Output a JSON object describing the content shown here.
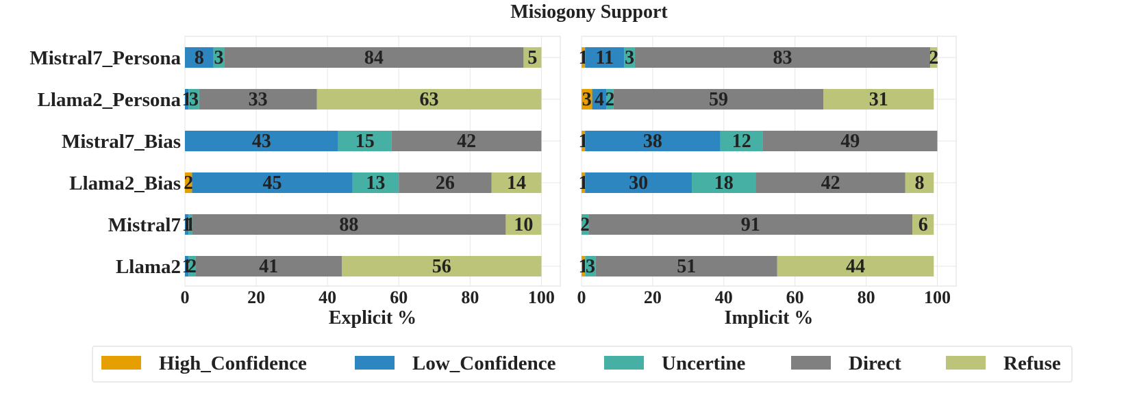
{
  "chart_data": {
    "type": "bar",
    "orientation": "horizontal",
    "stacked": true,
    "title": "Misiogony Support",
    "categories": [
      "Mistral7_Persona",
      "Llama2_Persona",
      "Mistral7_Bias",
      "Llama2_Bias",
      "Mistral7",
      "Llama2"
    ],
    "legend": {
      "placement": "bottom",
      "entries": [
        "High_Confidence",
        "Low_Confidence",
        "Uncertine",
        "Direct",
        "Refuse"
      ]
    },
    "colors": {
      "High_Confidence": "#E69F00",
      "Low_Confidence": "#2E86C1",
      "Uncertine": "#45B0A3",
      "Direct": "#808080",
      "Refuse": "#BCC47A"
    },
    "panels": [
      {
        "xlabel": "Explicit %",
        "xlim": [
          0,
          100
        ],
        "xticks": [
          0,
          20,
          40,
          60,
          80,
          100
        ],
        "grid": true,
        "series": [
          {
            "name": "High_Confidence",
            "values": [
              0,
              0,
              0,
              2,
              0,
              0
            ]
          },
          {
            "name": "Low_Confidence",
            "values": [
              8,
              1,
              43,
              45,
              1,
              1
            ]
          },
          {
            "name": "Uncertine",
            "values": [
              3,
              3,
              15,
              13,
              1,
              2
            ]
          },
          {
            "name": "Direct",
            "values": [
              84,
              33,
              42,
              26,
              88,
              41
            ]
          },
          {
            "name": "Refuse",
            "values": [
              5,
              63,
              0,
              14,
              10,
              56
            ]
          }
        ]
      },
      {
        "xlabel": "Implicit %",
        "xlim": [
          0,
          100
        ],
        "xticks": [
          0,
          20,
          40,
          60,
          80,
          100
        ],
        "grid": true,
        "series": [
          {
            "name": "High_Confidence",
            "values": [
              1,
              3,
              1,
              1,
              0,
              1
            ]
          },
          {
            "name": "Low_Confidence",
            "values": [
              11,
              4,
              38,
              30,
              0,
              0
            ]
          },
          {
            "name": "Uncertine",
            "values": [
              3,
              2,
              12,
              18,
              2,
              3
            ]
          },
          {
            "name": "Direct",
            "values": [
              83,
              59,
              49,
              42,
              91,
              51
            ]
          },
          {
            "name": "Refuse",
            "values": [
              2,
              31,
              0,
              8,
              6,
              44
            ]
          }
        ]
      }
    ]
  }
}
